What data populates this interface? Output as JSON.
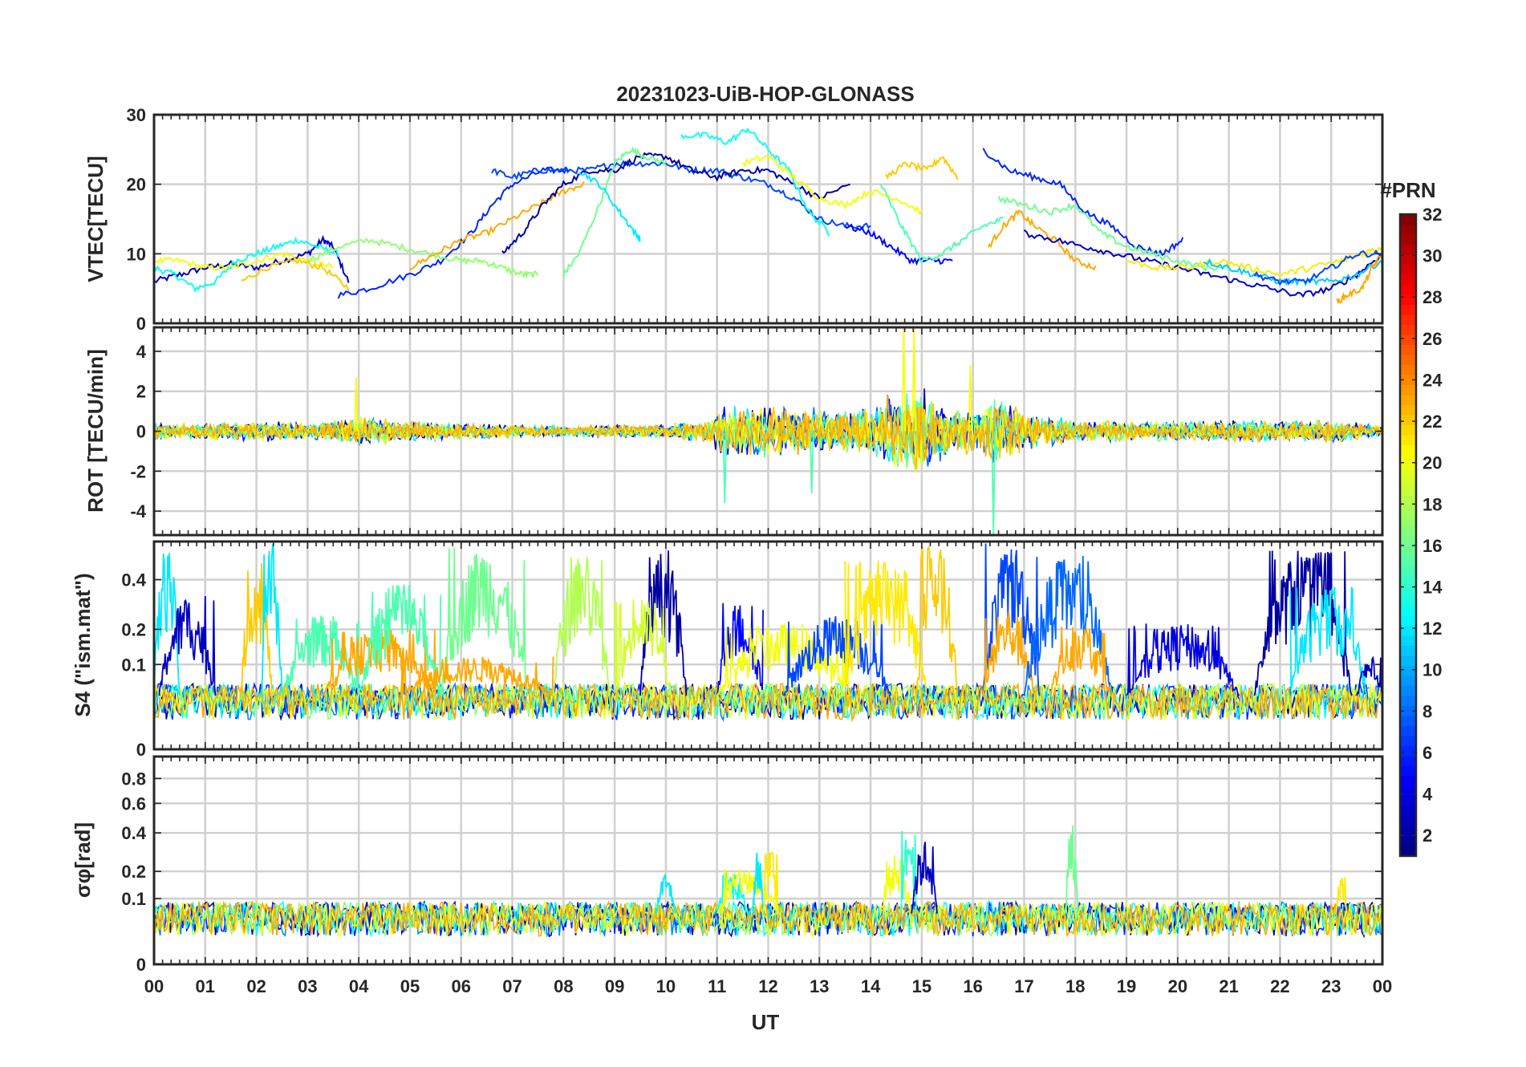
{
  "title": "20231023-UiB-HOP-GLONASS",
  "xlabel": "UT",
  "x_ticks": [
    "00",
    "01",
    "02",
    "03",
    "04",
    "05",
    "06",
    "07",
    "08",
    "09",
    "10",
    "11",
    "12",
    "13",
    "14",
    "15",
    "16",
    "17",
    "18",
    "19",
    "20",
    "21",
    "22",
    "23",
    "00"
  ],
  "colorbar": {
    "label": "#PRN",
    "ticks": [
      "2",
      "4",
      "6",
      "8",
      "10",
      "12",
      "14",
      "16",
      "18",
      "20",
      "22",
      "24",
      "26",
      "28",
      "30",
      "32"
    ],
    "range": [
      1,
      32
    ],
    "colormap": "jet",
    "colors": [
      "#00008f",
      "#0000ff",
      "#0080ff",
      "#00ffff",
      "#80ff80",
      "#ffff00",
      "#ff8000",
      "#ff0000",
      "#800000"
    ]
  },
  "chart_data": [
    {
      "type": "line",
      "panel": "VTEC",
      "ylabel": "VTEC[TECU]",
      "xlim": [
        0,
        24
      ],
      "ylim": [
        0,
        30
      ],
      "y_ticks": [
        "0",
        "10",
        "20",
        "30"
      ],
      "grid": true,
      "series": [
        {
          "prn": 3,
          "x": [
            0,
            0.5,
            1,
            1.5,
            2,
            2.5,
            3,
            3.3,
            3.5,
            3.8
          ],
          "y": [
            6,
            7,
            8,
            8.5,
            8,
            9,
            10,
            12,
            11,
            6
          ]
        },
        {
          "prn": 13,
          "x": [
            0,
            0.4,
            0.8,
            1.2,
            1.6,
            2,
            2.4,
            2.8,
            3.2,
            3.6
          ],
          "y": [
            8,
            7,
            5,
            6,
            9,
            10,
            11,
            12,
            11,
            10
          ]
        },
        {
          "prn": 20,
          "x": [
            0,
            0.5,
            1,
            1.5,
            2,
            2.5,
            3,
            3.5
          ],
          "y": [
            9,
            9,
            8,
            8,
            9,
            10,
            9,
            8
          ]
        },
        {
          "prn": 22,
          "x": [
            1.7,
            2.2,
            2.8,
            3.3,
            3.8
          ],
          "y": [
            6,
            8,
            9,
            8,
            5
          ]
        },
        {
          "prn": 6,
          "x": [
            3.6,
            4.2,
            5,
            5.6,
            6.2,
            6.6,
            7,
            7.6,
            8.1
          ],
          "y": [
            4,
            5,
            7,
            9,
            13,
            17,
            20,
            22,
            22
          ]
        },
        {
          "prn": 17,
          "x": [
            3,
            3.6,
            4.2,
            4.8,
            5.4,
            6,
            6.4,
            6.8,
            7.2,
            7.5
          ],
          "y": [
            9,
            11,
            12,
            11,
            10,
            9,
            9,
            8,
            7,
            7
          ]
        },
        {
          "prn": 23,
          "x": [
            5,
            5.5,
            6,
            6.5,
            7,
            7.5,
            8,
            8.4
          ],
          "y": [
            8,
            10,
            12,
            13,
            15,
            17,
            19,
            20
          ]
        },
        {
          "prn": 7,
          "x": [
            6.6,
            7,
            7.5,
            8,
            8.5,
            9,
            9.5,
            10,
            10.5,
            11,
            11.5,
            12,
            12.5,
            13,
            13.5,
            14
          ],
          "y": [
            22,
            21,
            22,
            22,
            22,
            23,
            23,
            23,
            22,
            22,
            21,
            20,
            18,
            15,
            14,
            14
          ]
        },
        {
          "prn": 2,
          "x": [
            6.8,
            7.2,
            7.6,
            8,
            8.5,
            9,
            9.5,
            10,
            10.5,
            11,
            11.5,
            12,
            12.5,
            13,
            13.6
          ],
          "y": [
            10,
            13,
            17,
            20,
            22,
            22,
            24,
            24,
            22,
            21,
            22,
            22,
            20,
            18,
            20
          ]
        },
        {
          "prn": 16,
          "x": [
            8,
            8.3,
            8.7,
            9,
            9.3,
            9.6,
            10
          ],
          "y": [
            7,
            10,
            17,
            23,
            25,
            24,
            23
          ]
        },
        {
          "prn": 13,
          "x": [
            10.3,
            10.8,
            11.2,
            11.6,
            12,
            12.4,
            12.8,
            13.2
          ],
          "y": [
            27,
            27,
            26,
            28,
            25,
            22,
            16,
            13
          ]
        },
        {
          "prn": 12,
          "x": [
            8.3,
            8.7,
            9.1,
            9.4,
            9.5
          ],
          "y": [
            22,
            20,
            16,
            13,
            12
          ]
        },
        {
          "prn": 20,
          "x": [
            11.5,
            12,
            12.5,
            13,
            13.5,
            14,
            14.5,
            15
          ],
          "y": [
            23,
            24,
            21,
            18,
            17,
            19,
            18,
            16
          ]
        },
        {
          "prn": 22,
          "x": [
            14.3,
            14.7,
            15.1,
            15.4,
            15.7
          ],
          "y": [
            21,
            23,
            22,
            24,
            21
          ]
        },
        {
          "prn": 5,
          "x": [
            13.5,
            14,
            14.4,
            14.8,
            15.2,
            15.6
          ],
          "y": [
            14,
            13,
            11,
            9,
            9,
            9
          ]
        },
        {
          "prn": 15,
          "x": [
            14.2,
            14.6,
            15,
            15.4,
            15.8,
            16.2,
            16.6
          ],
          "y": [
            20,
            14,
            9,
            10,
            12,
            14,
            15
          ]
        },
        {
          "prn": 6,
          "x": [
            16.2,
            16.7,
            17.2,
            17.7,
            18.2,
            18.7,
            19.2,
            19.7,
            20.1
          ],
          "y": [
            25,
            22,
            21,
            20,
            16,
            14,
            11,
            10,
            12
          ]
        },
        {
          "prn": 23,
          "x": [
            16.3,
            16.6,
            16.9,
            17.2,
            17.6,
            18,
            18.4
          ],
          "y": [
            11,
            14,
            16,
            14,
            12,
            9,
            8
          ]
        },
        {
          "prn": 16,
          "x": [
            16.5,
            17,
            17.5,
            18,
            18.5,
            19,
            19.5,
            20,
            20.5,
            21
          ],
          "y": [
            18,
            17,
            16,
            17,
            13,
            11,
            10,
            9,
            8,
            8
          ]
        },
        {
          "prn": 3,
          "x": [
            17,
            17.6,
            18.2,
            18.8,
            19.4,
            20,
            20.6,
            21.2,
            21.8,
            22.4,
            23,
            23.5,
            24
          ],
          "y": [
            13,
            12,
            11,
            10,
            9,
            8,
            7,
            6,
            5,
            4,
            5,
            7,
            10
          ]
        },
        {
          "prn": 21,
          "x": [
            19,
            19.6,
            20.2,
            20.8,
            21.4,
            22,
            22.6,
            23.2,
            23.6,
            24
          ],
          "y": [
            9,
            8,
            8,
            9,
            8,
            7,
            8,
            9,
            10,
            11
          ]
        },
        {
          "prn": 11,
          "x": [
            20.5,
            21,
            21.5,
            22,
            22.5,
            23,
            23.5,
            24
          ],
          "y": [
            9,
            8,
            7,
            6,
            6,
            6,
            7,
            9
          ]
        },
        {
          "prn": 7,
          "x": [
            21.5,
            22,
            22.5,
            23,
            23.5,
            24
          ],
          "y": [
            7,
            6,
            6,
            8,
            10,
            10
          ]
        },
        {
          "prn": 23,
          "x": [
            23.1,
            23.3,
            23.6,
            23.8,
            24
          ],
          "y": [
            3,
            4,
            5,
            8,
            10
          ]
        }
      ]
    },
    {
      "type": "line",
      "panel": "ROT",
      "ylabel": "ROT [TECU/min]",
      "xlim": [
        0,
        24
      ],
      "ylim": [
        -5.2,
        5.2
      ],
      "y_ticks": [
        "-4",
        "-2",
        "0",
        "2",
        "4"
      ],
      "grid": true,
      "envelope_description_hours": [
        0,
        1,
        2,
        3,
        4,
        5,
        6,
        7,
        8,
        9,
        10,
        10.8,
        11.2,
        12,
        12.5,
        13,
        13.5,
        14,
        14.5,
        15,
        15.5,
        16,
        16.5,
        17,
        17.5,
        18,
        19,
        20,
        21,
        22,
        23,
        24
      ],
      "envelope_amplitude": [
        0.7,
        0.6,
        0.8,
        0.6,
        1.2,
        0.8,
        0.6,
        0.5,
        0.4,
        0.5,
        0.5,
        0.9,
        2.0,
        2.2,
        2.0,
        1.8,
        1.6,
        2.2,
        3.0,
        3.5,
        2.0,
        1.8,
        2.5,
        1.5,
        1.2,
        0.8,
        0.8,
        0.7,
        0.9,
        0.8,
        0.9,
        0.4
      ],
      "notable_spikes": [
        {
          "x": 3.95,
          "y": 2.7
        },
        {
          "x": 14.65,
          "y": 5.2
        },
        {
          "x": 14.85,
          "y": 5.2
        },
        {
          "x": 15.95,
          "y": 3.3
        },
        {
          "x": 16.4,
          "y": -5.2
        },
        {
          "x": 11.15,
          "y": -3.6
        },
        {
          "x": 12.85,
          "y": -3.1
        }
      ]
    },
    {
      "type": "line",
      "panel": "S4",
      "ylabel": "S4 (\"ism.mat\")",
      "y_scale": "sqrt",
      "xlim": [
        0,
        24
      ],
      "ylim": [
        0,
        0.6
      ],
      "y_ticks": [
        "0",
        "0.1",
        "0.2",
        "0.4"
      ],
      "grid": true,
      "background_level": 0.04,
      "bursts": [
        {
          "prn": 12,
          "start": 0.0,
          "end": 0.5,
          "peak": 0.6
        },
        {
          "prn": 3,
          "start": 0.1,
          "end": 1.2,
          "peak": 0.33
        },
        {
          "prn": 22,
          "start": 1.7,
          "end": 2.3,
          "peak": 0.5
        },
        {
          "prn": 12,
          "start": 2.1,
          "end": 2.5,
          "peak": 0.6
        },
        {
          "prn": 15,
          "start": 2.5,
          "end": 4.0,
          "peak": 0.25
        },
        {
          "prn": 23,
          "start": 3.3,
          "end": 5.5,
          "peak": 0.2
        },
        {
          "prn": 15,
          "start": 4.0,
          "end": 5.6,
          "peak": 0.38
        },
        {
          "prn": 16,
          "start": 5.6,
          "end": 7.3,
          "peak": 0.58
        },
        {
          "prn": 23,
          "start": 4.8,
          "end": 7.8,
          "peak": 0.12
        },
        {
          "prn": 18,
          "start": 7.8,
          "end": 8.9,
          "peak": 0.55
        },
        {
          "prn": 2,
          "start": 9.5,
          "end": 10.4,
          "peak": 0.55
        },
        {
          "prn": 19,
          "start": 9.0,
          "end": 10.1,
          "peak": 0.32
        },
        {
          "prn": 5,
          "start": 11.0,
          "end": 11.9,
          "peak": 0.3
        },
        {
          "prn": 20,
          "start": 11.0,
          "end": 13.6,
          "peak": 0.22
        },
        {
          "prn": 7,
          "start": 12.3,
          "end": 14.4,
          "peak": 0.25
        },
        {
          "prn": 21,
          "start": 13.5,
          "end": 15.1,
          "peak": 0.5
        },
        {
          "prn": 22,
          "start": 14.9,
          "end": 15.7,
          "peak": 0.58
        },
        {
          "prn": 7,
          "start": 16.2,
          "end": 17.3,
          "peak": 0.6
        },
        {
          "prn": 23,
          "start": 16.2,
          "end": 17.2,
          "peak": 0.28
        },
        {
          "prn": 8,
          "start": 17.0,
          "end": 18.7,
          "peak": 0.52
        },
        {
          "prn": 23,
          "start": 17.5,
          "end": 18.7,
          "peak": 0.22
        },
        {
          "prn": 4,
          "start": 19.0,
          "end": 21.2,
          "peak": 0.22
        },
        {
          "prn": 2,
          "start": 21.5,
          "end": 23.4,
          "peak": 0.55
        },
        {
          "prn": 12,
          "start": 22.2,
          "end": 23.7,
          "peak": 0.38
        },
        {
          "prn": 3,
          "start": 23.5,
          "end": 24.0,
          "peak": 0.12
        }
      ]
    },
    {
      "type": "line",
      "panel": "sigma_phi",
      "ylabel": "σφ[rad]",
      "y_scale": "sqrt",
      "xlim": [
        0,
        24
      ],
      "ylim": [
        0,
        1
      ],
      "y_ticks": [
        "0",
        "0.1",
        "0.2",
        "0.4",
        "0.6",
        "0.8"
      ],
      "grid": true,
      "background_level": 0.06,
      "bursts": [
        {
          "prn": 13,
          "start": 11.0,
          "end": 11.6,
          "peak": 0.2
        },
        {
          "prn": 20,
          "start": 11.0,
          "end": 12.2,
          "peak": 0.22
        },
        {
          "prn": 12,
          "start": 11.7,
          "end": 11.9,
          "peak": 0.32
        },
        {
          "prn": 21,
          "start": 11.9,
          "end": 12.2,
          "peak": 0.3
        },
        {
          "prn": 20,
          "start": 14.2,
          "end": 14.8,
          "peak": 0.28
        },
        {
          "prn": 14,
          "start": 14.6,
          "end": 14.9,
          "peak": 0.45
        },
        {
          "prn": 3,
          "start": 14.8,
          "end": 15.3,
          "peak": 0.36
        },
        {
          "prn": 16,
          "start": 17.8,
          "end": 18.05,
          "peak": 0.46
        },
        {
          "prn": 12,
          "start": 9.8,
          "end": 10.2,
          "peak": 0.2
        },
        {
          "prn": 21,
          "start": 23.1,
          "end": 23.3,
          "peak": 0.2
        }
      ]
    }
  ]
}
